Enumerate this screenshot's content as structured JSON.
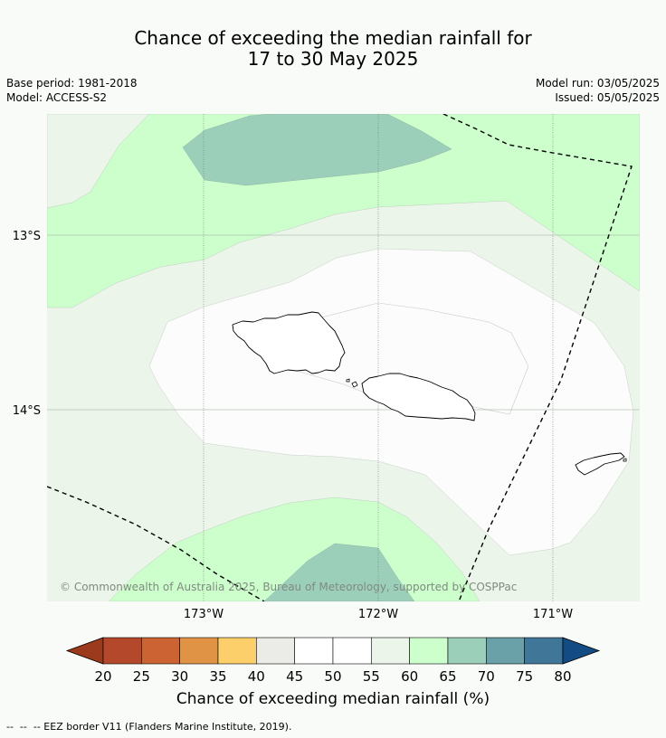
{
  "header": {
    "title_line1": "Chance of exceeding the median rainfall for",
    "title_line2": "17 to 30 May 2025",
    "base_period": "Base period: 1981-2018",
    "model": "Model: ACCESS-S2",
    "model_run": "Model run: 03/05/2025",
    "issued": "Issued: 05/05/2025"
  },
  "map": {
    "lat_labels": [
      "13°S",
      "14°S"
    ],
    "lon_labels": [
      "173°W",
      "172°W",
      "171°W"
    ],
    "copyright": "© Commonwealth of Australia 2025, Bureau of Meteorology, supported by COSPPac"
  },
  "legend": {
    "ticks": [
      "20",
      "25",
      "30",
      "35",
      "40",
      "45",
      "50",
      "55",
      "60",
      "65",
      "70",
      "75",
      "80"
    ],
    "colors": [
      "#9b3a1c",
      "#b3492a",
      "#cc6333",
      "#e09344",
      "#fdcf6a",
      "#ebebe7",
      "#ffffff",
      "#ffffff",
      "#ebf5ea",
      "#ccffcc",
      "#9ccfb9",
      "#6aa1a8",
      "#407799",
      "#134c85"
    ],
    "label": "Chance of exceeding median rainfall (%)"
  },
  "footer": {
    "eez_note": "--  --  -- EEZ border V11 (Flanders Marine Institute, 2019)."
  }
}
